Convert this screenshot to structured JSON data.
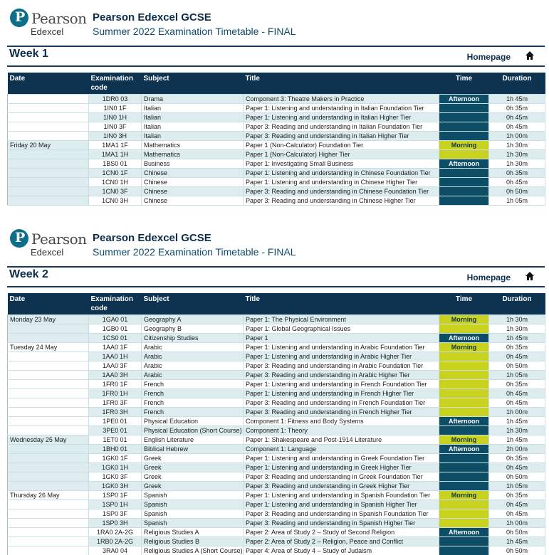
{
  "brand": {
    "logo_word": "Pearson",
    "logo_sub": "Edexcel",
    "logo_letter": "P"
  },
  "doc": {
    "title": "Pearson Edexcel GCSE",
    "subtitle": "Summer 2022 Examination Timetable - FINAL"
  },
  "nav": {
    "homepage": "Homepage"
  },
  "columns": {
    "date": "Date",
    "code_line1": "Examination",
    "code_line2": "code",
    "subject": "Subject",
    "title": "Title",
    "time": "Time",
    "duration": "Duration"
  },
  "weeks": [
    {
      "label": "Week 1",
      "rows": [
        {
          "date": "",
          "code": "1DR0 03",
          "subject": "Drama",
          "title": "Component 3: Theatre Makers in Practice",
          "time": "Afternoon",
          "duration": "1h 45m"
        },
        {
          "date": "",
          "code": "1IN0 1F",
          "subject": "Italian",
          "title": "Paper 1: Listening and understanding in Italian Foundation Tier",
          "time": "",
          "duration": "0h 35m"
        },
        {
          "date": "",
          "code": "1IN0 1H",
          "subject": "Italian",
          "title": "Paper 1: Listening and understanding in Italian Higher Tier",
          "time": "",
          "duration": "0h 45m"
        },
        {
          "date": "",
          "code": "1IN0 3F",
          "subject": "Italian",
          "title": "Paper 3: Reading and understanding in Italian Foundation Tier",
          "time": "",
          "duration": "0h 45m"
        },
        {
          "date": "",
          "code": "1IN0 3H",
          "subject": "Italian",
          "title": "Paper 3: Reading and understanding in Italian Higher Tier",
          "time": "",
          "duration": "1h 00m"
        },
        {
          "date": "Friday 20 May",
          "code": "1MA1 1F",
          "subject": "Mathematics",
          "title": "Paper 1 (Non-Calculator) Foundation Tier",
          "time": "Morning",
          "duration": "1h 30m"
        },
        {
          "date": "",
          "code": "1MA1 1H",
          "subject": "Mathematics",
          "title": "Paper 1 (Non-Calculator) Higher Tier",
          "time": "",
          "duration": "1h 30m"
        },
        {
          "date": "",
          "code": "1BS0 01",
          "subject": "Business",
          "title": "Paper 1: Investigating Small Business",
          "time": "Afternoon",
          "duration": "1h 30m"
        },
        {
          "date": "",
          "code": "1CN0 1F",
          "subject": "Chinese",
          "title": "Paper 1: Listening and understanding in Chinese Foundation Tier",
          "time": "",
          "duration": "0h 35m"
        },
        {
          "date": "",
          "code": "1CN0 1H",
          "subject": "Chinese",
          "title": "Paper 1: Listening and understanding in Chinese Higher Tier",
          "time": "",
          "duration": "0h 45m"
        },
        {
          "date": "",
          "code": "1CN0 3F",
          "subject": "Chinese",
          "title": "Paper 3: Reading and understanding in Chinese Foundation Tier",
          "time": "",
          "duration": "0h 50m"
        },
        {
          "date": "",
          "code": "1CN0 3H",
          "subject": "Chinese",
          "title": "Paper 3: Reading and understanding in Chinese Higher Tier",
          "time": "",
          "duration": "1h 05m"
        }
      ]
    },
    {
      "label": "Week 2",
      "rows": [
        {
          "date": "Monday 23 May",
          "code": "1GA0 01",
          "subject": "Geography A",
          "title": "Paper 1: The Physical Environment",
          "time": "Morning",
          "duration": "1h 30m"
        },
        {
          "date": "",
          "code": "1GB0 01",
          "subject": "Geography B",
          "title": "Paper 1: Global Geographical Issues",
          "time": "",
          "duration": "1h 30m"
        },
        {
          "date": "",
          "code": "1CS0 01",
          "subject": "Citizenship Studies",
          "title": "Paper 1",
          "time": "Afternoon",
          "duration": "1h 45m"
        },
        {
          "date": "Tuesday 24 May",
          "code": "1AA0 1F",
          "subject": "Arabic",
          "title": "Paper 1: Listening and understanding in Arabic Foundation Tier",
          "time": "Morning",
          "duration": "0h 35m"
        },
        {
          "date": "",
          "code": "1AA0 1H",
          "subject": "Arabic",
          "title": "Paper 1: Listening and understanding in Arabic Higher Tier",
          "time": "",
          "duration": "0h 45m"
        },
        {
          "date": "",
          "code": "1AA0 3F",
          "subject": "Arabic",
          "title": "Paper 3: Reading and understanding in Arabic Foundation Tier",
          "time": "",
          "duration": "0h 50m"
        },
        {
          "date": "",
          "code": "1AA0 3H",
          "subject": "Arabic",
          "title": "Paper 3: Reading and understanding in Arabic Higher Tier",
          "time": "",
          "duration": "1h 05m"
        },
        {
          "date": "",
          "code": "1FR0 1F",
          "subject": "French",
          "title": "Paper 1: Listening and understanding in French Foundation Tier",
          "time": "",
          "duration": "0h 35m"
        },
        {
          "date": "",
          "code": "1FR0 1H",
          "subject": "French",
          "title": "Paper 1: Listening and understanding in French Higher Tier",
          "time": "",
          "duration": "0h 45m"
        },
        {
          "date": "",
          "code": "1FR0 3F",
          "subject": "French",
          "title": "Paper 3: Reading and understanding in French Foundation Tier",
          "time": "",
          "duration": "0h 45m"
        },
        {
          "date": "",
          "code": "1FR0 3H",
          "subject": "French",
          "title": "Paper 3: Reading and understanding in French Higher Tier",
          "time": "",
          "duration": "1h 00m"
        },
        {
          "date": "",
          "code": "1PE0 01",
          "subject": "Physical Education",
          "title": "Component 1: Fitness and Body Systems",
          "time": "Afternoon",
          "duration": "1h 45m"
        },
        {
          "date": "",
          "code": "3PE0 01",
          "subject": "Physical Education (Short Course)",
          "title": "Component 1: Theory",
          "time": "",
          "duration": "1h 30m"
        },
        {
          "date": "Wednesday 25 May",
          "code": "1ET0 01",
          "subject": "English Literature",
          "title": "Paper 1: Shakespeare and Post-1914 Literature",
          "time": "Morning",
          "duration": "1h 45m"
        },
        {
          "date": "",
          "code": "1BH0 01",
          "subject": "Biblical Hebrew",
          "title": "Component 1: Language",
          "time": "Afternoon",
          "duration": "2h 00m"
        },
        {
          "date": "",
          "code": "1GK0 1F",
          "subject": "Greek",
          "title": "Paper 1: Listening and understanding in Greek Foundation Tier",
          "time": "",
          "duration": "0h 35m"
        },
        {
          "date": "",
          "code": "1GK0 1H",
          "subject": "Greek",
          "title": "Paper 1: Listening and understanding in Greek Higher Tier",
          "time": "",
          "duration": "0h 45m"
        },
        {
          "date": "",
          "code": "1GK0 3F",
          "subject": "Greek",
          "title": "Paper 3: Reading and understanding in Greek Foundation Tier",
          "time": "",
          "duration": "0h 50m"
        },
        {
          "date": "",
          "code": "1GK0 3H",
          "subject": "Greek",
          "title": "Paper 3: Reading and understanding in Greek Higher Tier",
          "time": "",
          "duration": "1h 05m"
        },
        {
          "date": "Thursday 26 May",
          "code": "1SP0 1F",
          "subject": "Spanish",
          "title": "Paper 1: Listening and understanding in Spanish Foundation Tier",
          "time": "Morning",
          "duration": "0h 35m"
        },
        {
          "date": "",
          "code": "1SP0 1H",
          "subject": "Spanish",
          "title": "Paper 1: Listening and understanding in Spanish Higher Tier",
          "time": "",
          "duration": "0h 45m"
        },
        {
          "date": "",
          "code": "1SP0 3F",
          "subject": "Spanish",
          "title": "Paper 3: Reading and understanding in Spanish Foundation Tier",
          "time": "",
          "duration": "0h 45m"
        },
        {
          "date": "",
          "code": "1SP0 3H",
          "subject": "Spanish",
          "title": "Paper 3: Reading and understanding in Spanish Higher Tier",
          "time": "",
          "duration": "1h 00m"
        },
        {
          "date": "",
          "code": "1RA0 2A-2G",
          "subject": "Religious Studies A",
          "title": "Paper 2: Area of Study 2 – Study of Second Religion",
          "time": "Afternoon",
          "duration": "0h 50m"
        },
        {
          "date": "",
          "code": "1RB0 2A-2G",
          "subject": "Religious Studies B",
          "title": "Paper 2: Area of Study 2 – Religion, Peace and Conflict",
          "time": "",
          "duration": "1h 45m"
        },
        {
          "date": "",
          "code": "3RA0 04",
          "subject": "Religious Studies A (Short Course)",
          "title": "Paper 4: Area of Study 4 – Study of Judaism",
          "time": "",
          "duration": "0h 50m"
        }
      ]
    }
  ],
  "colors": {
    "navy": "#0d3350",
    "morning": "#c9d31f",
    "afternoon": "#0d4d66",
    "row_shade": "#dcecef"
  },
  "icons": {
    "home": "home-icon",
    "logo": "pearson-logo-icon"
  }
}
